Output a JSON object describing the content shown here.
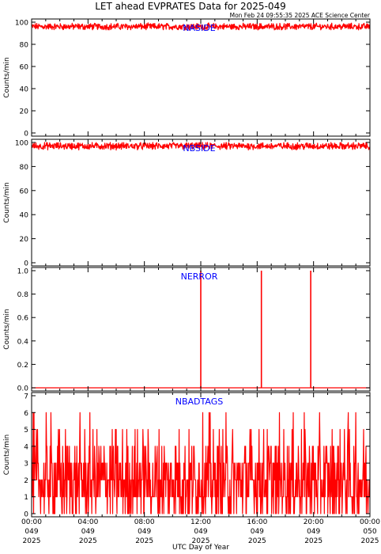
{
  "title": "LET ahead EVPRATES Data for 2025-049",
  "subtitle": "Mon Feb 24 09:55:35 2025 ACE Science Center",
  "xlabel": "UTC Day of Year",
  "colors": {
    "data": "#ff0000",
    "panel_label": "#0000ff",
    "axes": "#000000",
    "background": "#ffffff"
  },
  "x_ticks": [
    {
      "time": "00:00",
      "doy": "049",
      "year": "2025"
    },
    {
      "time": "04:00",
      "doy": "049",
      "year": "2025"
    },
    {
      "time": "08:00",
      "doy": "049",
      "year": "2025"
    },
    {
      "time": "12:00",
      "doy": "049",
      "year": "2025"
    },
    {
      "time": "16:00",
      "doy": "049",
      "year": "2025"
    },
    {
      "time": "20:00",
      "doy": "049",
      "year": "2025"
    },
    {
      "time": "00:00",
      "doy": "050",
      "year": "2025"
    }
  ],
  "chart_data": [
    {
      "type": "line",
      "name": "NASIDE",
      "ylabel": "Counts/min",
      "xlim_hours": [
        0,
        24
      ],
      "ylim": [
        0,
        100
      ],
      "yticks": [
        0,
        20,
        40,
        60,
        80,
        100
      ],
      "ytick_labels": [
        "0",
        "20",
        "40",
        "60",
        "80",
        "100"
      ],
      "baseline": 96,
      "noise_range": [
        93,
        100
      ],
      "description_points": {
        "x_hours": [
          0,
          6,
          12,
          18,
          24
        ],
        "y": [
          96,
          96,
          96,
          96,
          96
        ]
      }
    },
    {
      "type": "line",
      "name": "NBSIDE",
      "ylabel": "Counts/min",
      "xlim_hours": [
        0,
        24
      ],
      "ylim": [
        0,
        100
      ],
      "yticks": [
        0,
        20,
        40,
        60,
        80,
        100
      ],
      "ytick_labels": [
        "0",
        "20",
        "40",
        "60",
        "80",
        "100"
      ],
      "baseline": 97,
      "noise_range": [
        93,
        100
      ],
      "description_points": {
        "x_hours": [
          0,
          6,
          12,
          18,
          24
        ],
        "y": [
          97,
          97,
          97,
          97,
          97
        ]
      }
    },
    {
      "type": "line",
      "name": "NERROR",
      "ylabel": "Counts/min",
      "xlim_hours": [
        0,
        24
      ],
      "ylim": [
        0,
        1
      ],
      "yticks": [
        0,
        0.2,
        0.4,
        0.6,
        0.8,
        1.0
      ],
      "ytick_labels": [
        "0.0",
        "0.2",
        "0.4",
        "0.6",
        "0.8",
        "1.0"
      ],
      "baseline": 0,
      "spikes": [
        {
          "x_hours": 12.0,
          "y": 1
        },
        {
          "x_hours": 16.3,
          "y": 1
        },
        {
          "x_hours": 19.8,
          "y": 1
        }
      ]
    },
    {
      "type": "line",
      "name": "NBADTAGS",
      "ylabel": "Counts/min",
      "xlim_hours": [
        0,
        24
      ],
      "ylim": [
        0,
        7
      ],
      "yticks": [
        0,
        1,
        2,
        3,
        4,
        5,
        6,
        7
      ],
      "ytick_labels": [
        "0",
        "1",
        "2",
        "3",
        "4",
        "5",
        "6",
        "7"
      ],
      "value_range": [
        0,
        6
      ],
      "typical_range": [
        0,
        4
      ],
      "occasional_peaks": [
        5,
        6
      ]
    }
  ]
}
